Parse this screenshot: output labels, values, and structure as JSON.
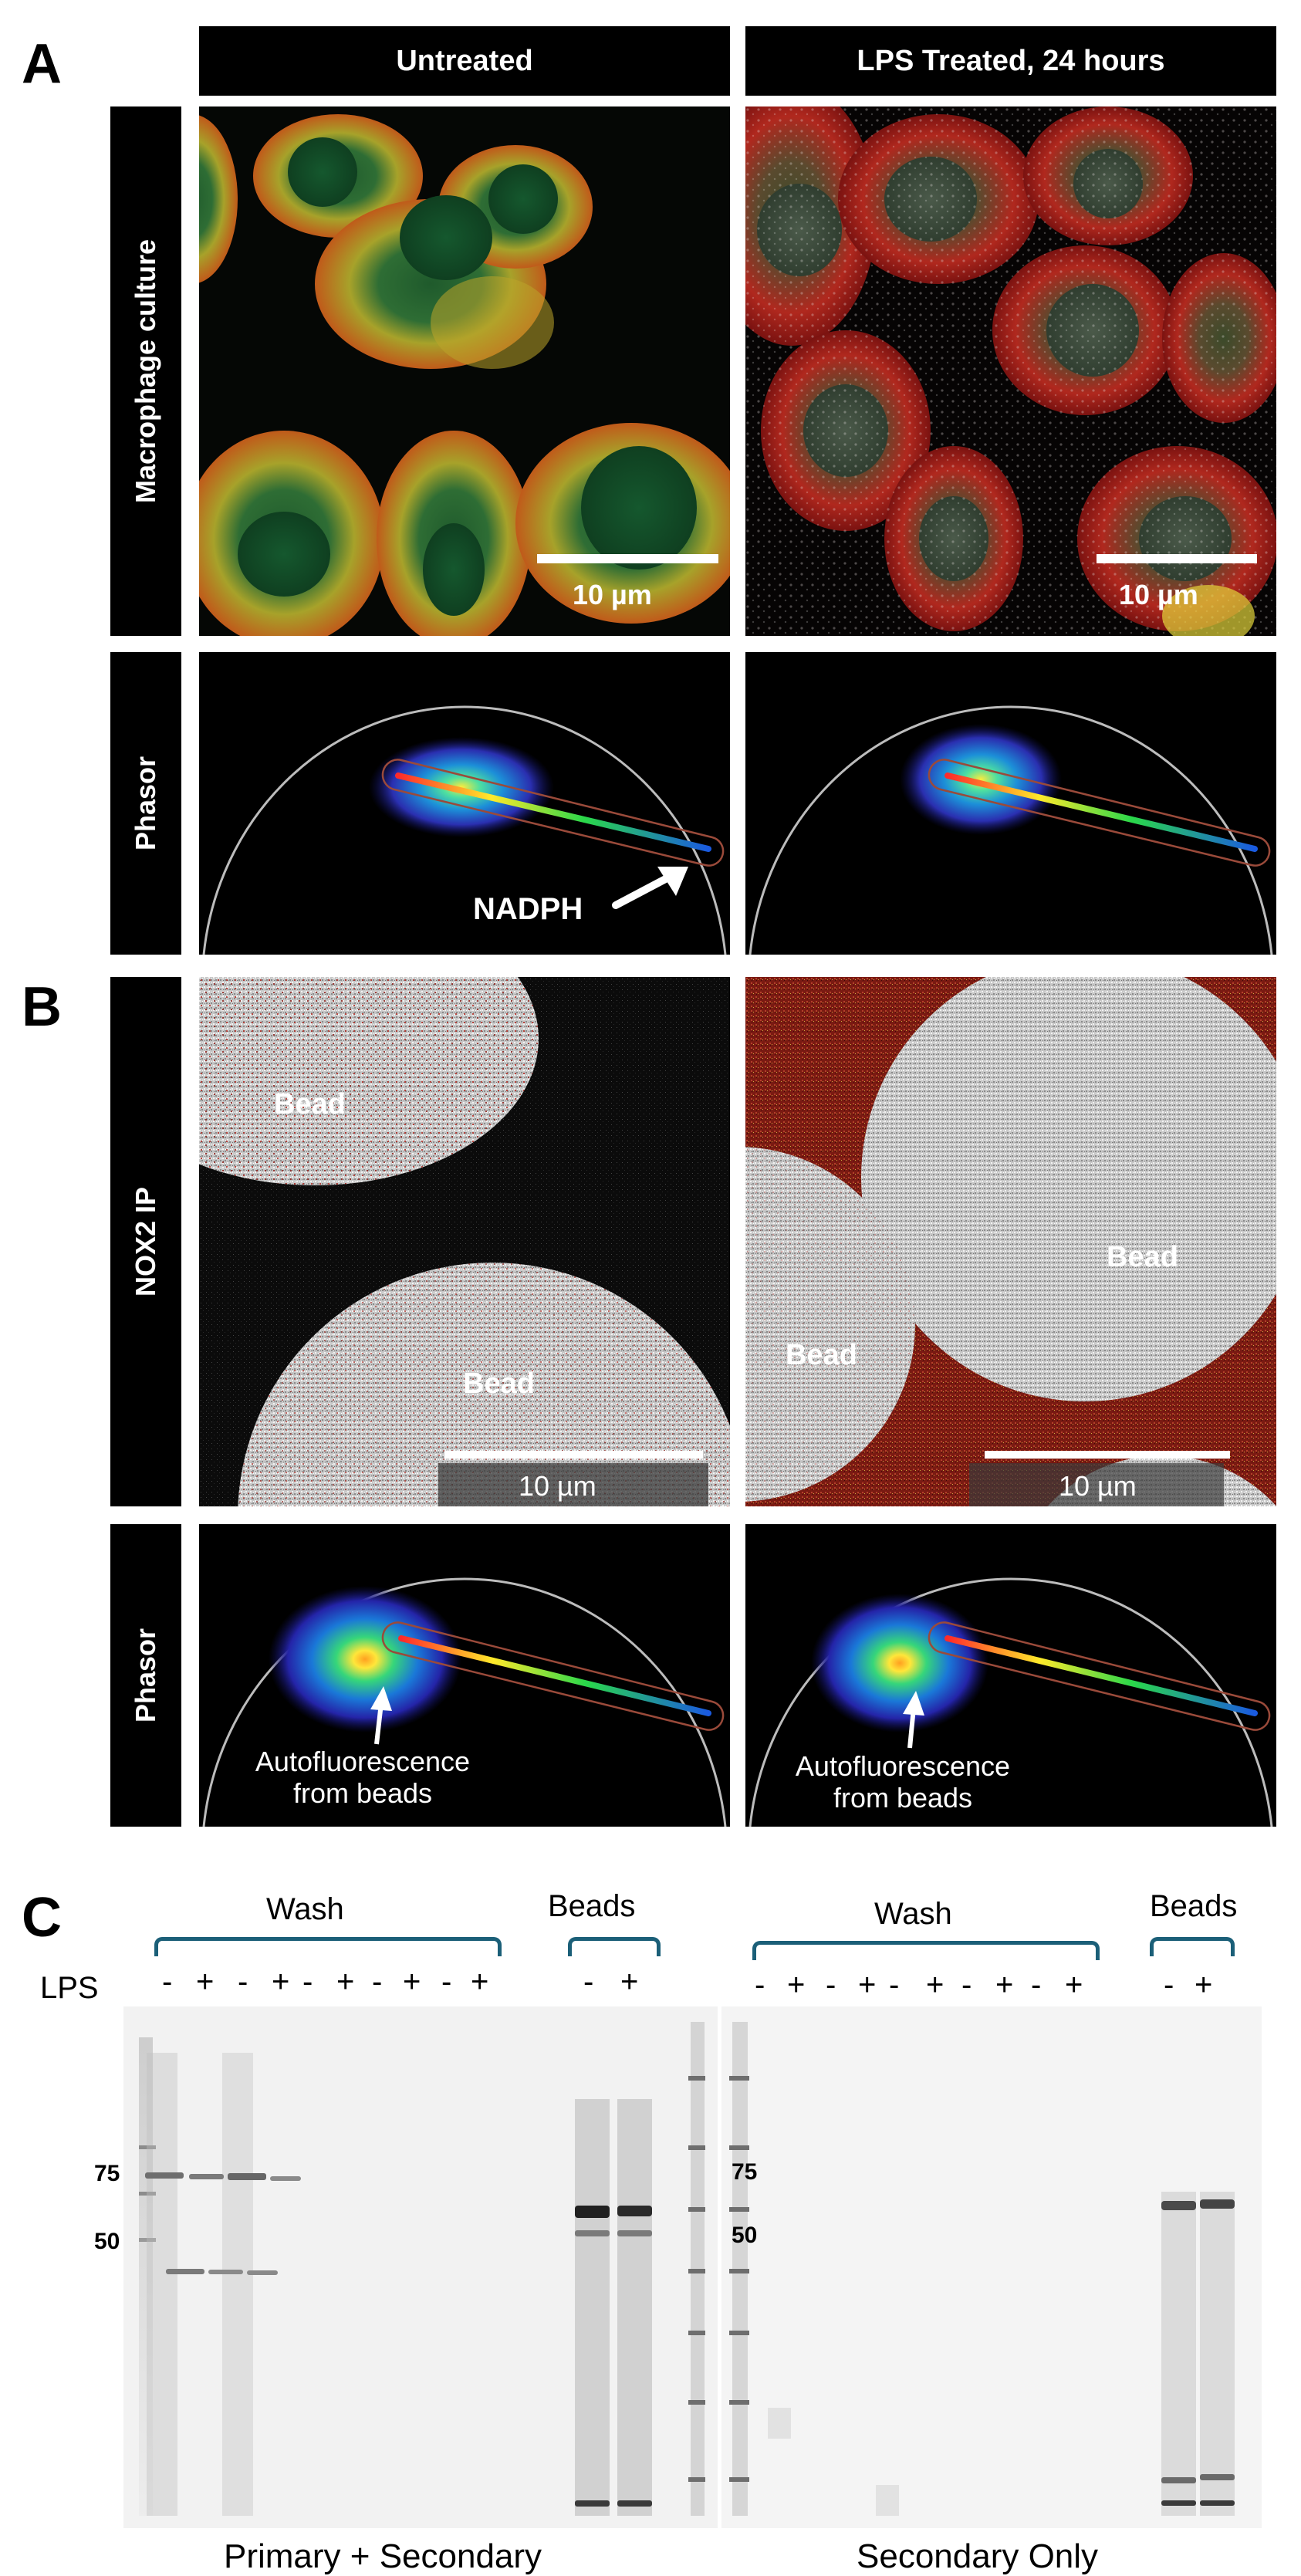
{
  "panels": {
    "a": {
      "letter": "A",
      "col_headers": [
        "Untreated",
        "LPS Treated, 24 hours"
      ],
      "row_headers": [
        "Macrophage culture",
        "Phasor"
      ],
      "scale_label": "10 µm",
      "annotation": "NADPH"
    },
    "b": {
      "letter": "B",
      "row_headers": [
        "NOX2 IP",
        "Phasor"
      ],
      "bead_label": "Bead",
      "scale_label": "10 µm",
      "annotation_line1": "Autofluorescence",
      "annotation_line2": "from beads"
    },
    "c": {
      "letter": "C",
      "wash_label": "Wash",
      "beads_label": "Beads",
      "lps_label": "LPS",
      "wash_signs": [
        "-",
        "+",
        "-",
        "+",
        "-",
        "+",
        "-",
        "+",
        "-",
        "+"
      ],
      "bead_signs": [
        "-",
        "+"
      ],
      "mw_markers": [
        "75",
        "50"
      ],
      "gel_captions": [
        "Primary + Secondary",
        "Secondary Only"
      ]
    }
  },
  "colors": {
    "header_bg": "#000000",
    "bracket": "#1b5f78",
    "gel_bg": "#f2f2f2"
  }
}
